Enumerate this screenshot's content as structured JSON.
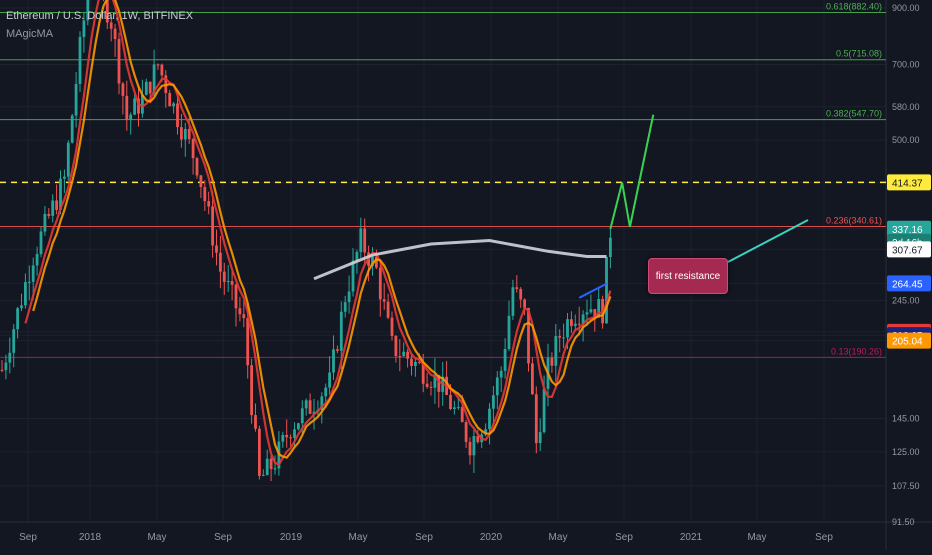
{
  "header": {
    "title": "Ethereum / U.S. Dollar, 1W, BITFINEX",
    "indicator": "MAgicMA"
  },
  "annotation": {
    "text": "first resistance"
  },
  "colors": {
    "background": "#131722",
    "grid": "#1e2230",
    "up": "#26a69a",
    "down": "#ef5350",
    "ma_red": "#e53935",
    "ma_orange": "#ff9800",
    "ma_white": "#d1d4dc",
    "fib_green": "#4caf50",
    "fib_red": "#c2185b",
    "projection": "#39d353"
  },
  "chart_data": {
    "type": "candlestick",
    "symbol": "ETHUSD",
    "exchange": "BITFINEX",
    "timeframe": "1W",
    "scale": "log",
    "ylim": [
      91.5,
      900
    ],
    "x_tick_labels": [
      "Sep",
      "2018",
      "May",
      "Sep",
      "2019",
      "May",
      "Sep",
      "2020",
      "May",
      "Sep",
      "2021",
      "May",
      "Sep"
    ],
    "y_tick_labels": [
      "900.00",
      "700.00",
      "580.00",
      "500.00",
      "414.37",
      "337.16",
      "307.67",
      "264.45",
      "245.00",
      "213.15",
      "210.05",
      "205.04",
      "145.00",
      "125.00",
      "107.50",
      "91.50"
    ],
    "price_markers": [
      {
        "text": "414.37",
        "color": "#ffeb3b",
        "value": 414.37
      },
      {
        "text": "337.16",
        "color": "#26a69a",
        "value": 337.16
      },
      {
        "text": "2d 16h",
        "color": "#1b7f74",
        "value": 318
      },
      {
        "text": "307.67",
        "color": "#ffffff",
        "value": 307.67
      },
      {
        "text": "264.45",
        "color": "#2962ff",
        "value": 264.45
      },
      {
        "text": "213.15",
        "color": "#e53935",
        "value": 213.15
      },
      {
        "text": "210.05",
        "color": "#1a237e",
        "value": 210.05
      },
      {
        "text": "205.04",
        "color": "#ff9800",
        "value": 205.04
      }
    ],
    "fib_levels": [
      {
        "label": "0.618(882.40)",
        "value": 882.4,
        "color": "#4caf50"
      },
      {
        "label": "0.5(715.08)",
        "value": 715.08,
        "color": "#4caf50"
      },
      {
        "label": "0.382(547.70)",
        "value": 547.7,
        "color": "#4caf50"
      },
      {
        "label": "0.236(340.61)",
        "value": 340.61,
        "color": "#ef5350"
      },
      {
        "label": "0.13(190.26)",
        "value": 190.26,
        "color": "#c2185b"
      }
    ],
    "resistance_dashed": 414.37,
    "weeks": 205,
    "anchors": [
      {
        "t": 0,
        "p": 180
      },
      {
        "t": 8,
        "p": 300
      },
      {
        "t": 16,
        "p": 420
      },
      {
        "t": 20,
        "p": 750
      },
      {
        "t": 23,
        "p": 1100
      },
      {
        "t": 28,
        "p": 850
      },
      {
        "t": 32,
        "p": 550
      },
      {
        "t": 36,
        "p": 600
      },
      {
        "t": 40,
        "p": 700
      },
      {
        "t": 44,
        "p": 580
      },
      {
        "t": 50,
        "p": 450
      },
      {
        "t": 56,
        "p": 280
      },
      {
        "t": 62,
        "p": 220
      },
      {
        "t": 66,
        "p": 110
      },
      {
        "t": 70,
        "p": 120
      },
      {
        "t": 74,
        "p": 140
      },
      {
        "t": 78,
        "p": 150
      },
      {
        "t": 84,
        "p": 170
      },
      {
        "t": 88,
        "p": 250
      },
      {
        "t": 92,
        "p": 320
      },
      {
        "t": 96,
        "p": 280
      },
      {
        "t": 100,
        "p": 200
      },
      {
        "t": 104,
        "p": 190
      },
      {
        "t": 108,
        "p": 180
      },
      {
        "t": 112,
        "p": 170
      },
      {
        "t": 116,
        "p": 150
      },
      {
        "t": 120,
        "p": 130
      },
      {
        "t": 124,
        "p": 145
      },
      {
        "t": 128,
        "p": 180
      },
      {
        "t": 131,
        "p": 260
      },
      {
        "t": 134,
        "p": 230
      },
      {
        "t": 137,
        "p": 130
      },
      {
        "t": 140,
        "p": 180
      },
      {
        "t": 143,
        "p": 210
      },
      {
        "t": 146,
        "p": 230
      },
      {
        "t": 150,
        "p": 240
      },
      {
        "t": 154,
        "p": 235
      },
      {
        "t": 156,
        "p": 335
      }
    ],
    "overlay_lines": [
      {
        "name": "blue-trend",
        "color": "#2962ff",
        "points": [
          [
            148,
            248
          ],
          [
            155,
            264
          ]
        ]
      },
      {
        "name": "projection-path",
        "color": "#39d353",
        "points": [
          [
            156,
            337
          ],
          [
            159,
            414
          ],
          [
            161,
            340
          ],
          [
            167,
            560
          ]
        ]
      }
    ],
    "moving_averages": [
      {
        "name": "ma-red",
        "color": "#e53935",
        "period": 6
      },
      {
        "name": "ma-orange",
        "color": "#ff9800",
        "period": 8
      },
      {
        "name": "ma-white",
        "color": "#d1d4dc",
        "period": 0,
        "points": [
          [
            80,
            270
          ],
          [
            95,
            300
          ],
          [
            110,
            315
          ],
          [
            125,
            320
          ],
          [
            140,
            305
          ],
          [
            150,
            298
          ],
          [
            155,
            298
          ]
        ]
      }
    ]
  }
}
